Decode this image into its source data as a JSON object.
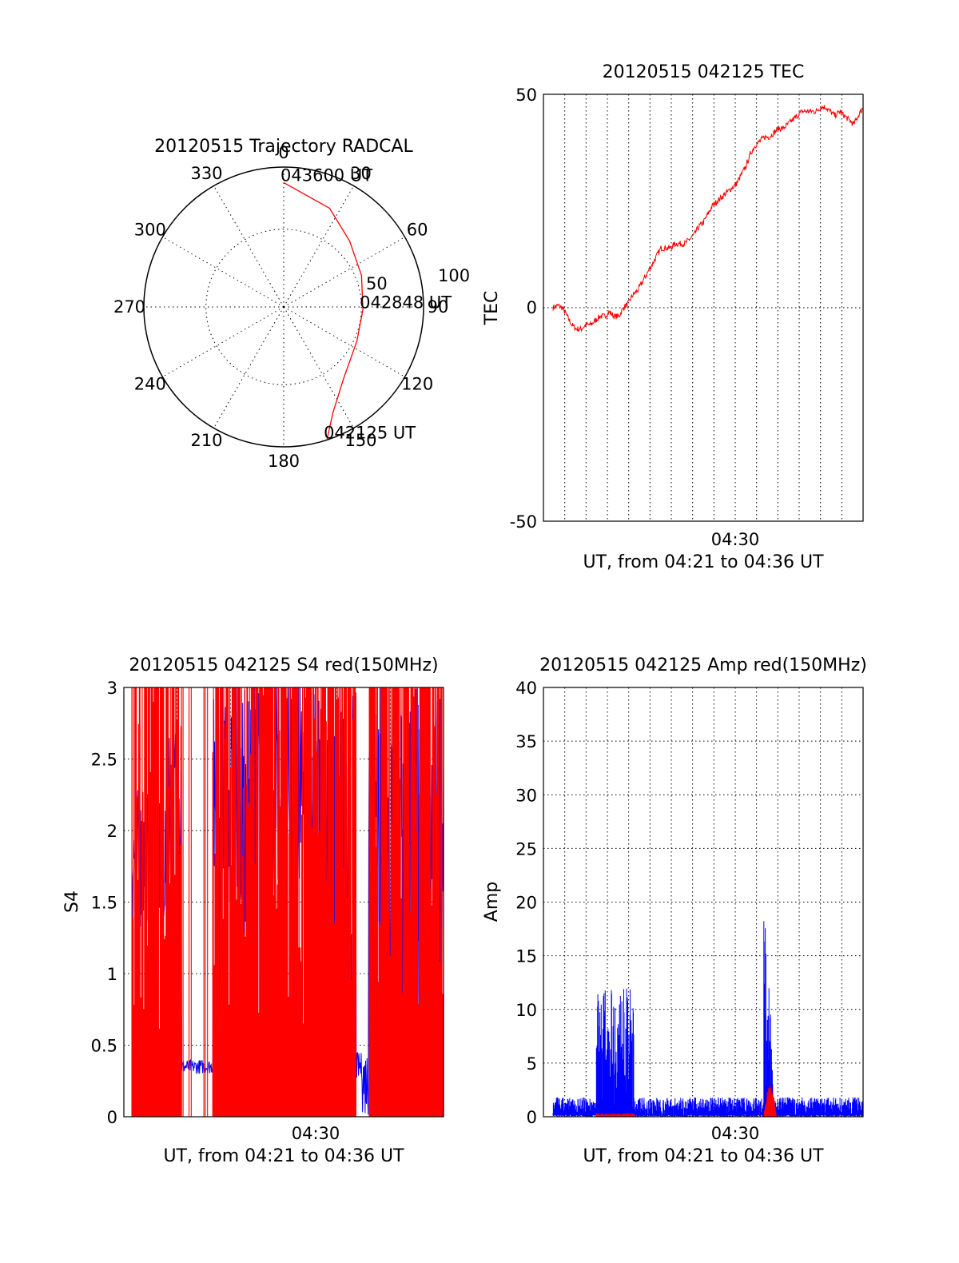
{
  "colors": {
    "red": "#ff0000",
    "blue": "#0000ff",
    "axis": "#000000"
  },
  "chart_data": [
    {
      "type": "polar",
      "title": "20120515 Trajectory RADCAL",
      "azimuth_labels": [
        "0",
        "30",
        "60",
        "90",
        "120",
        "150",
        "180",
        "210",
        "240",
        "270",
        "300",
        "330"
      ],
      "radial_labels": [
        "50",
        "100"
      ],
      "trajectory": {
        "color": "red",
        "points": [
          {
            "az": 162,
            "zen": 90,
            "label": "042125 UT"
          },
          {
            "az": 155,
            "zen": 75
          },
          {
            "az": 140,
            "zen": 60
          },
          {
            "az": 115,
            "zen": 52
          },
          {
            "az": 92,
            "zen": 51,
            "label": "042848 UT"
          },
          {
            "az": 68,
            "zen": 54
          },
          {
            "az": 45,
            "zen": 60
          },
          {
            "az": 25,
            "zen": 70
          },
          {
            "az": 0,
            "zen": 80,
            "label": "043600 UT"
          }
        ]
      }
    },
    {
      "type": "line",
      "title": "20120515 042125 TEC",
      "ylabel": "TEC",
      "xlabel": "UT, from 04:21 to 04:36 UT",
      "xtick_label": "04:30",
      "yticks": [
        "-50",
        "0",
        "50"
      ],
      "ylim": [
        -50,
        50
      ],
      "series": [
        {
          "color": "red",
          "values": [
            0,
            0.5,
            0,
            -2,
            -4,
            -5,
            -5,
            -4,
            -4,
            -3,
            -2,
            -2,
            -1,
            -2,
            -2,
            0,
            1,
            3,
            4,
            6,
            8,
            10,
            12,
            14,
            14,
            14,
            15,
            15,
            15,
            16,
            17,
            19,
            20,
            22,
            24,
            25,
            26,
            27,
            28,
            29,
            31,
            33,
            36,
            38,
            39,
            40,
            40,
            41,
            42,
            42,
            43,
            44,
            45,
            46,
            46,
            46,
            46,
            47,
            47,
            46,
            45,
            46,
            45,
            44,
            43,
            45,
            47
          ]
        }
      ]
    },
    {
      "type": "line",
      "title": "20120515 042125 S4 red(150MHz)",
      "ylabel": "S4",
      "xlabel": "UT, from 04:21 to 04:36 UT",
      "xtick_label": "04:30",
      "yticks": [
        "0",
        "0.5",
        "1",
        "1.5",
        "2",
        "2.5",
        "3"
      ],
      "ylim": [
        0,
        3
      ],
      "series": [
        {
          "name": "",
          "color": "red"
        },
        {
          "name": "",
          "color": "blue"
        }
      ]
    },
    {
      "type": "line",
      "title": "20120515 042125 Amp red(150MHz)",
      "ylabel": "Amp",
      "xlabel": "UT, from 04:21 to 04:36 UT",
      "xtick_label": "04:30",
      "yticks": [
        "0",
        "5",
        "10",
        "15",
        "20",
        "25",
        "30",
        "35",
        "40"
      ],
      "ylim": [
        0,
        40
      ],
      "series": [
        {
          "color": "blue",
          "baseline": 1,
          "bursts": [
            {
              "from": 0.14,
              "to": 0.26,
              "peak": 12
            },
            {
              "from": 0.68,
              "to": 0.72,
              "peak": 21
            }
          ]
        },
        {
          "color": "red",
          "bursts": [
            {
              "from": 0.14,
              "to": 0.26,
              "peak": 0.3
            },
            {
              "from": 0.68,
              "to": 0.72,
              "peak": 3
            }
          ]
        }
      ]
    }
  ]
}
